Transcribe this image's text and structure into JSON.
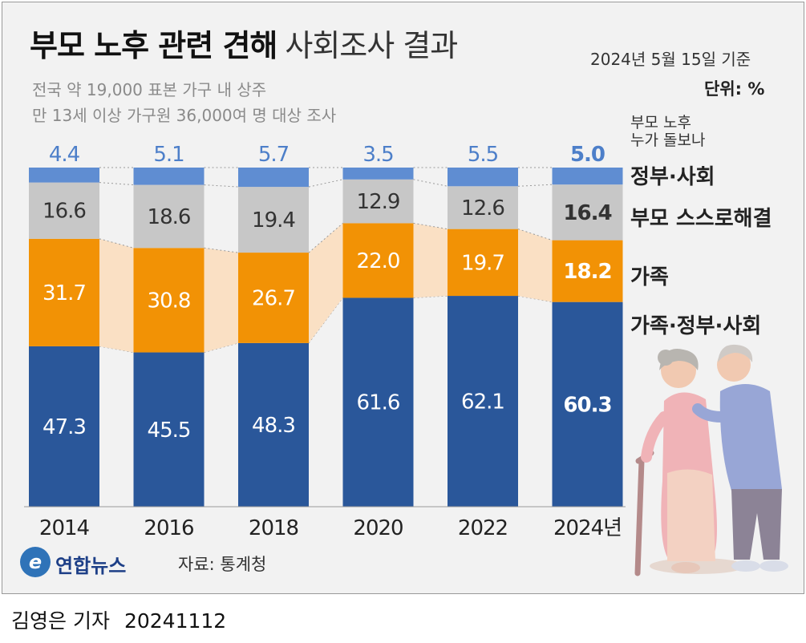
{
  "header": {
    "title_bold": "부모 노후 관련 견해",
    "title_light": "사회조사 결과",
    "as_of": "2024년 5월 15일 기준",
    "unit": "단위: %",
    "subtitle_lines": [
      "전국 약 19,000 표본 가구 내 상주",
      "만 13세 이상 가구원 36,000여 명 대상 조사"
    ]
  },
  "legend": {
    "question_lines": [
      "부모 노후",
      "누가 돌보나"
    ],
    "items": [
      {
        "label": "정부·사회",
        "color": "#5b8bd0"
      },
      {
        "label": "부모 스스로해결",
        "color": "#8c8c8c"
      },
      {
        "label": "가족",
        "color": "#f2900c"
      },
      {
        "label": "가족·정부·사회",
        "color": "#1f4e96"
      }
    ]
  },
  "chart_data": {
    "type": "bar",
    "stacked": true,
    "title": "부모 노후 관련 견해",
    "unit": "%",
    "categories": [
      "2014",
      "2016",
      "2018",
      "2020",
      "2022",
      "2024년"
    ],
    "series": [
      {
        "name": "가족·정부·사회",
        "values": [
          47.3,
          45.5,
          48.3,
          61.6,
          62.1,
          60.3
        ],
        "color": "#2a579a"
      },
      {
        "name": "가족",
        "values": [
          31.7,
          30.8,
          26.7,
          22.0,
          19.7,
          18.2
        ],
        "color": "#f29205"
      },
      {
        "name": "부모 스스로해결",
        "values": [
          16.6,
          18.6,
          19.4,
          12.9,
          12.6,
          16.4
        ],
        "color": "#c7c7c7"
      },
      {
        "name": "정부·사회",
        "values": [
          4.4,
          5.1,
          5.7,
          3.5,
          5.5,
          5.0
        ],
        "color": "#5f8dd2"
      }
    ],
    "data_labels": {
      "가족·정부·사회": [
        "47.3",
        "45.5",
        "48.3",
        "61.6",
        "62.1",
        "60.3"
      ],
      "가족": [
        "31.7",
        "30.8",
        "26.7",
        "22.0",
        "19.7",
        "18.2"
      ],
      "부모 스스로해결": [
        "16.6",
        "18.6",
        "19.4",
        "12.9",
        "12.6",
        "16.4"
      ],
      "정부·사회": [
        "4.4",
        "5.1",
        "5.7",
        "3.5",
        "5.5",
        "5.0"
      ]
    },
    "highlight_category": "2024년",
    "ylim": [
      0,
      100
    ]
  },
  "footer": {
    "logo_text": "연합뉴스",
    "logo_mark": "e",
    "source": "자료: 통계청",
    "reporter": "김영은 기자",
    "date": "20241112"
  }
}
